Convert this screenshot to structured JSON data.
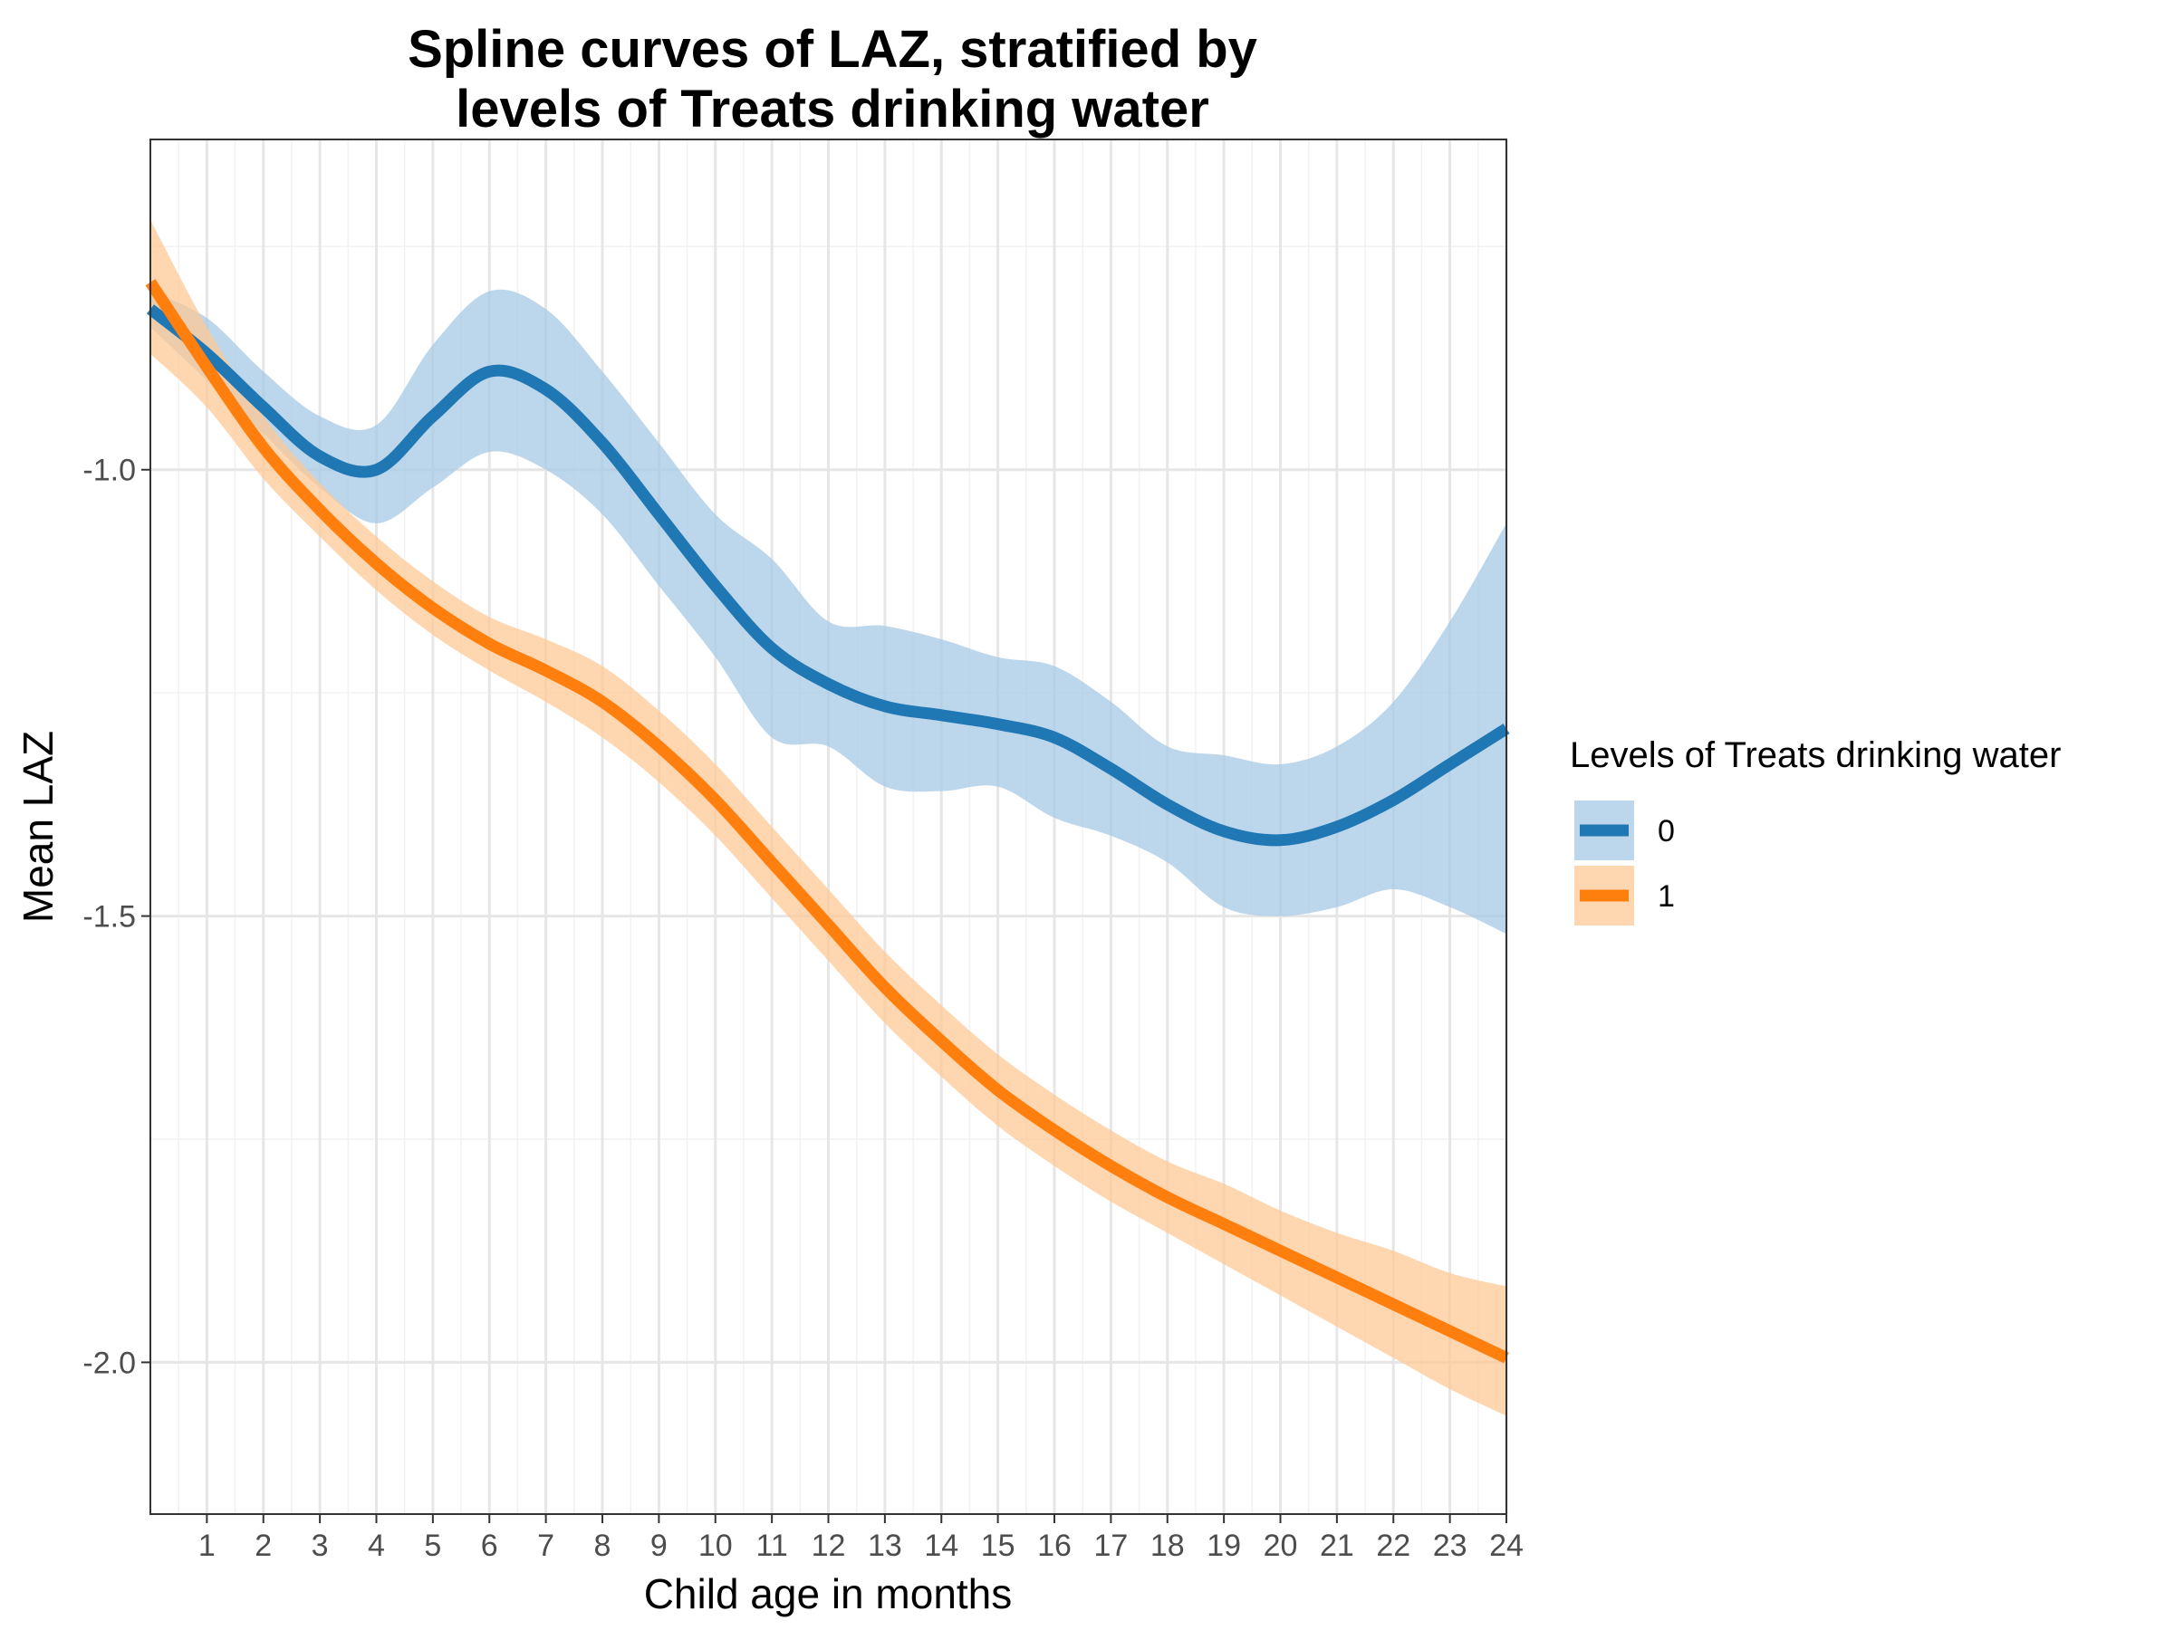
{
  "chart_data": {
    "type": "line",
    "title_lines": [
      "Spline curves of LAZ, stratified by",
      "levels of Treats drinking water"
    ],
    "xlabel": "Child age in months",
    "ylabel": "Mean LAZ",
    "xlim": [
      0,
      24
    ],
    "ylim": [
      -2.17,
      -0.63
    ],
    "x_ticks": [
      1,
      2,
      3,
      4,
      5,
      6,
      7,
      8,
      9,
      10,
      11,
      12,
      13,
      14,
      15,
      16,
      17,
      18,
      19,
      20,
      21,
      22,
      23,
      24
    ],
    "y_ticks": [
      -1.0,
      -1.5,
      -2.0
    ],
    "y_tick_labels": [
      "-1.0",
      "-1.5",
      "-2.0"
    ],
    "grid": true,
    "legend": {
      "title": "Levels of Treats drinking water",
      "position": "right"
    },
    "series": [
      {
        "name": "0",
        "color": "#1f77b4",
        "band_color": "#a6c8e4",
        "x": [
          0,
          1,
          2,
          3,
          4,
          5,
          6,
          7,
          8,
          9,
          10,
          11,
          12,
          13,
          14,
          15,
          16,
          17,
          18,
          19,
          20,
          21,
          22,
          23,
          24
        ],
        "y": [
          -0.82,
          -0.87,
          -0.93,
          -0.985,
          -1.0,
          -0.94,
          -0.89,
          -0.91,
          -0.97,
          -1.05,
          -1.13,
          -1.2,
          -1.24,
          -1.265,
          -1.275,
          -1.285,
          -1.3,
          -1.335,
          -1.375,
          -1.405,
          -1.415,
          -1.4,
          -1.37,
          -1.33,
          -1.29
        ],
        "lower": [
          -0.84,
          -0.9,
          -0.96,
          -1.02,
          -1.06,
          -1.02,
          -0.98,
          -1.0,
          -1.05,
          -1.13,
          -1.21,
          -1.3,
          -1.31,
          -1.355,
          -1.36,
          -1.355,
          -1.39,
          -1.41,
          -1.44,
          -1.49,
          -1.5,
          -1.49,
          -1.47,
          -1.49,
          -1.52
        ],
        "upper": [
          -0.8,
          -0.83,
          -0.89,
          -0.94,
          -0.95,
          -0.86,
          -0.8,
          -0.82,
          -0.89,
          -0.97,
          -1.05,
          -1.1,
          -1.17,
          -1.175,
          -1.19,
          -1.21,
          -1.22,
          -1.26,
          -1.31,
          -1.32,
          -1.33,
          -1.31,
          -1.26,
          -1.17,
          -1.06
        ]
      },
      {
        "name": "1",
        "color": "#ff7f0e",
        "band_color": "#fdc896",
        "x": [
          0,
          1,
          2,
          3,
          4,
          5,
          6,
          7,
          8,
          9,
          10,
          11,
          12,
          13,
          14,
          15,
          16,
          17,
          18,
          19,
          20,
          21,
          22,
          23,
          24
        ],
        "y": [
          -0.79,
          -0.885,
          -0.975,
          -1.045,
          -1.105,
          -1.155,
          -1.195,
          -1.225,
          -1.26,
          -1.31,
          -1.37,
          -1.44,
          -1.51,
          -1.58,
          -1.64,
          -1.695,
          -1.74,
          -1.78,
          -1.815,
          -1.845,
          -1.875,
          -1.905,
          -1.935,
          -1.965,
          -1.995
        ],
        "lower": [
          -0.87,
          -0.93,
          -1.01,
          -1.075,
          -1.135,
          -1.185,
          -1.225,
          -1.26,
          -1.3,
          -1.35,
          -1.41,
          -1.48,
          -1.55,
          -1.62,
          -1.68,
          -1.735,
          -1.78,
          -1.82,
          -1.855,
          -1.89,
          -1.925,
          -1.96,
          -1.995,
          -2.03,
          -2.06
        ],
        "upper": [
          -0.72,
          -0.84,
          -0.94,
          -1.015,
          -1.075,
          -1.125,
          -1.165,
          -1.19,
          -1.22,
          -1.27,
          -1.33,
          -1.4,
          -1.47,
          -1.54,
          -1.6,
          -1.655,
          -1.7,
          -1.74,
          -1.775,
          -1.8,
          -1.83,
          -1.855,
          -1.875,
          -1.9,
          -1.915
        ]
      }
    ]
  }
}
